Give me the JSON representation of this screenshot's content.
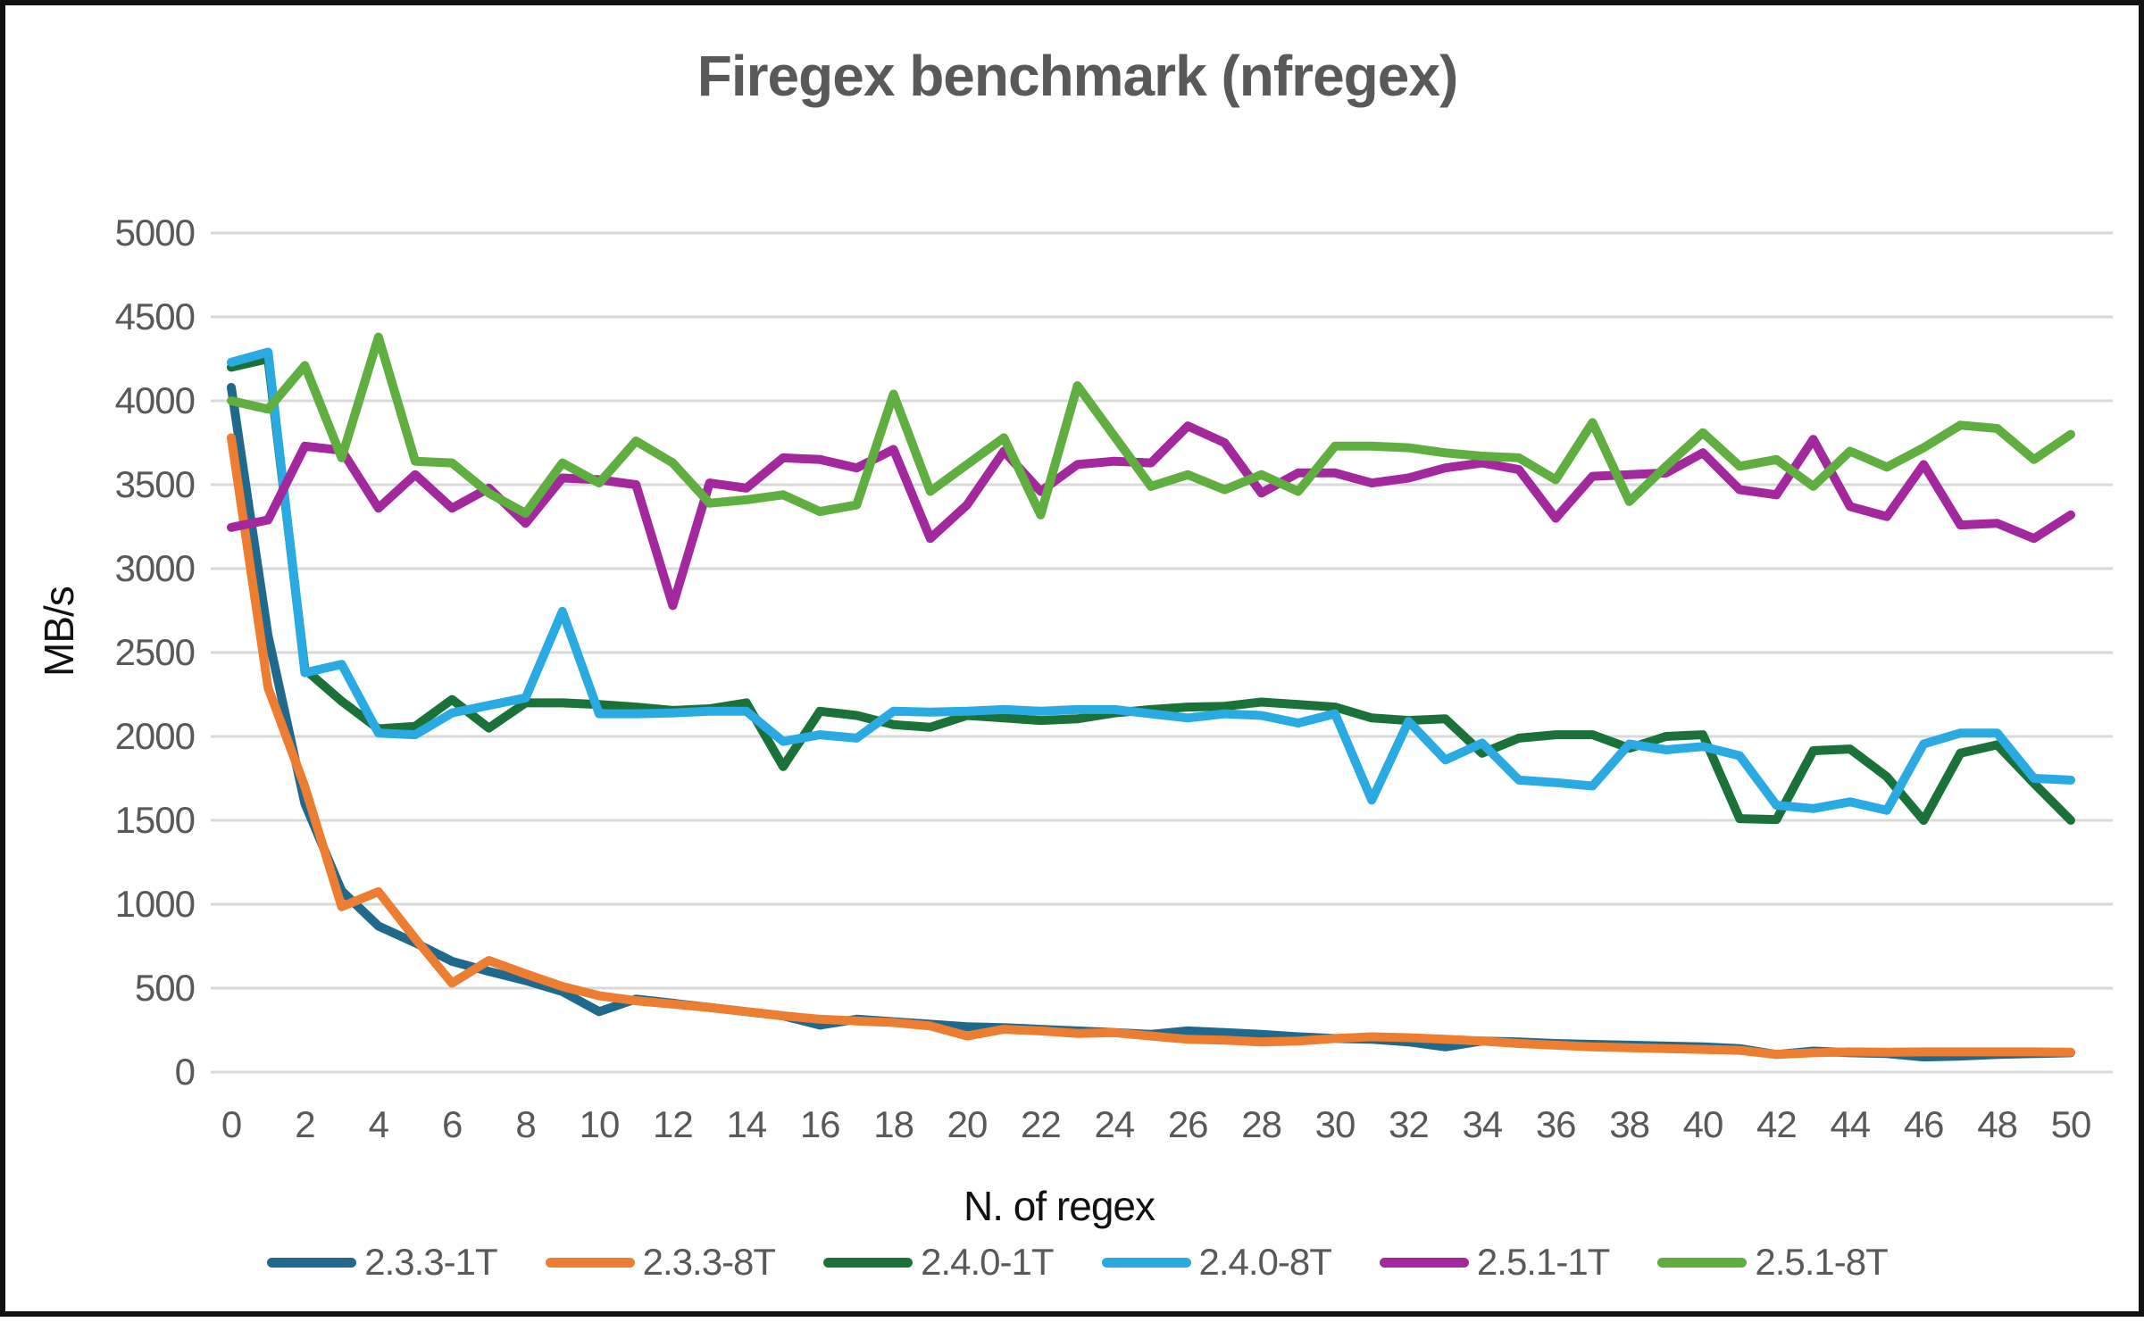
{
  "title": "Firegex benchmark (nfregex)",
  "colors": {
    "text": "#595959",
    "grid": "#D9D9D9",
    "frame": "#111111"
  },
  "chart_data": {
    "type": "line",
    "title": "Firegex benchmark (nfregex)",
    "xlabel": "N. of regex",
    "ylabel": "MB/s",
    "xlim": [
      0,
      50
    ],
    "ylim": [
      0,
      5000
    ],
    "y_tick_step": 500,
    "x_tick_step": 2,
    "grid": true,
    "legend_position": "bottom",
    "x": [
      0,
      1,
      2,
      3,
      4,
      5,
      6,
      7,
      8,
      9,
      10,
      11,
      12,
      13,
      14,
      15,
      16,
      17,
      18,
      19,
      20,
      21,
      22,
      23,
      24,
      25,
      26,
      27,
      28,
      29,
      30,
      31,
      32,
      33,
      34,
      35,
      36,
      37,
      38,
      39,
      40,
      41,
      42,
      43,
      44,
      45,
      46,
      47,
      48,
      49,
      50
    ],
    "series": [
      {
        "name": "2.3.3-1T",
        "color": "#1F6A8C",
        "values": [
          4080,
          2600,
          1600,
          1080,
          870,
          770,
          660,
          600,
          545,
          480,
          360,
          435,
          410,
          385,
          360,
          335,
          280,
          315,
          300,
          285,
          270,
          265,
          255,
          245,
          235,
          225,
          245,
          235,
          225,
          210,
          200,
          195,
          180,
          150,
          185,
          180,
          170,
          165,
          160,
          155,
          150,
          140,
          105,
          125,
          115,
          110,
          90,
          95,
          105,
          110,
          115
        ]
      },
      {
        "name": "2.3.3-8T",
        "color": "#ED7D31",
        "values": [
          3780,
          2290,
          1700,
          985,
          1075,
          795,
          530,
          665,
          585,
          510,
          455,
          425,
          405,
          385,
          360,
          335,
          315,
          305,
          295,
          275,
          215,
          255,
          245,
          230,
          235,
          215,
          195,
          190,
          180,
          185,
          200,
          210,
          205,
          195,
          185,
          170,
          160,
          150,
          145,
          140,
          135,
          130,
          105,
          115,
          120,
          118,
          120,
          120,
          120,
          120,
          118
        ]
      },
      {
        "name": "2.4.0-1T",
        "color": "#1A7239",
        "values": [
          4200,
          4250,
          2400,
          2210,
          2045,
          2060,
          2220,
          2050,
          2200,
          2200,
          2190,
          2175,
          2155,
          2165,
          2200,
          1820,
          2150,
          2125,
          2070,
          2055,
          2125,
          2110,
          2095,
          2105,
          2140,
          2160,
          2175,
          2180,
          2205,
          2190,
          2175,
          2110,
          2095,
          2105,
          1900,
          1990,
          2010,
          2010,
          1930,
          2000,
          2010,
          1510,
          1505,
          1915,
          1925,
          1760,
          1500,
          1900,
          1950,
          1720,
          1500
        ]
      },
      {
        "name": "2.4.0-8T",
        "color": "#29AAE2",
        "values": [
          4230,
          4290,
          2380,
          2430,
          2020,
          2010,
          2140,
          2185,
          2230,
          2745,
          2135,
          2135,
          2140,
          2150,
          2150,
          1970,
          2010,
          1990,
          2150,
          2145,
          2150,
          2160,
          2150,
          2160,
          2160,
          2135,
          2110,
          2135,
          2125,
          2080,
          2135,
          1620,
          2090,
          1860,
          1960,
          1740,
          1725,
          1705,
          1955,
          1920,
          1940,
          1885,
          1590,
          1570,
          1610,
          1560,
          1955,
          2020,
          2020,
          1750,
          1740
        ]
      },
      {
        "name": "2.5.1-1T",
        "color": "#A4289D",
        "values": [
          3245,
          3290,
          3730,
          3705,
          3360,
          3560,
          3360,
          3480,
          3270,
          3540,
          3530,
          3500,
          2780,
          3510,
          3480,
          3660,
          3650,
          3600,
          3710,
          3180,
          3380,
          3700,
          3460,
          3620,
          3640,
          3630,
          3850,
          3750,
          3450,
          3570,
          3570,
          3510,
          3540,
          3600,
          3630,
          3590,
          3300,
          3550,
          3560,
          3570,
          3690,
          3470,
          3440,
          3770,
          3370,
          3310,
          3620,
          3260,
          3270,
          3180,
          3320
        ]
      },
      {
        "name": "2.5.1-8T",
        "color": "#5FAE40",
        "values": [
          4000,
          3950,
          4210,
          3660,
          4380,
          3640,
          3630,
          3450,
          3330,
          3630,
          3510,
          3760,
          3630,
          3390,
          3410,
          3440,
          3340,
          3380,
          4040,
          3460,
          3620,
          3780,
          3320,
          4090,
          3790,
          3490,
          3560,
          3470,
          3560,
          3460,
          3730,
          3730,
          3720,
          3690,
          3670,
          3660,
          3530,
          3870,
          3400,
          3610,
          3810,
          3610,
          3650,
          3490,
          3700,
          3605,
          3720,
          3855,
          3835,
          3650,
          3800
        ]
      }
    ]
  }
}
